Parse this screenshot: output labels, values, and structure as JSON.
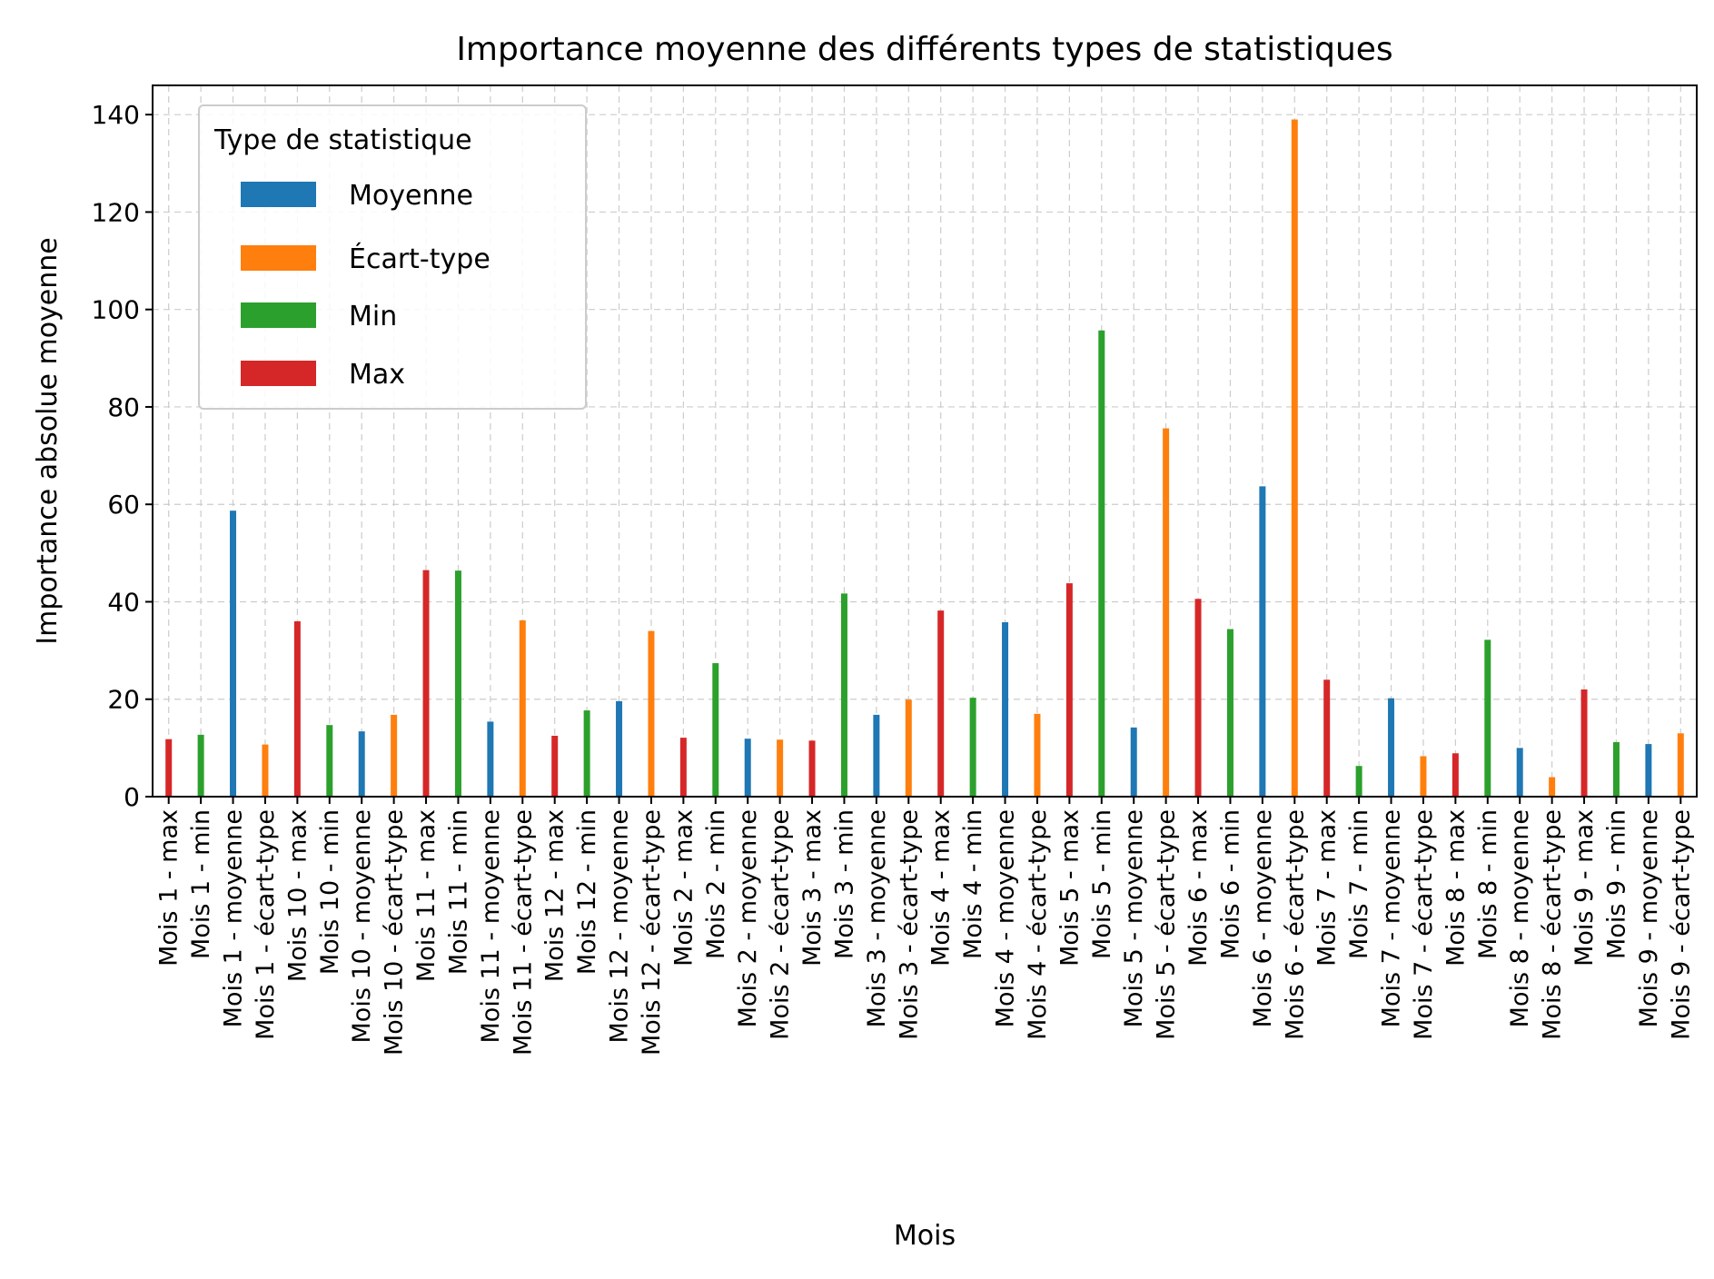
{
  "chart_data": {
    "type": "bar",
    "title": "Importance moyenne des différents types de statistiques",
    "xlabel": "Mois",
    "ylabel": "Importance absolue moyenne",
    "ylim": [
      0,
      146
    ],
    "yticks": [
      0,
      20,
      40,
      60,
      80,
      100,
      120,
      140
    ],
    "grid": true,
    "legend": {
      "title": "Type de statistique",
      "placement": "top-left"
    },
    "categories": [
      "Mois 1 - max",
      "Mois 1 - min",
      "Mois 1 - moyenne",
      "Mois 1 - écart-type",
      "Mois 10 - max",
      "Mois 10 - min",
      "Mois 10 - moyenne",
      "Mois 10 - écart-type",
      "Mois 11 - max",
      "Mois 11 - min",
      "Mois 11 - moyenne",
      "Mois 11 - écart-type",
      "Mois 12 - max",
      "Mois 12 - min",
      "Mois 12 - moyenne",
      "Mois 12 - écart-type",
      "Mois 2 - max",
      "Mois 2 - min",
      "Mois 2 - moyenne",
      "Mois 2 - écart-type",
      "Mois 3 - max",
      "Mois 3 - min",
      "Mois 3 - moyenne",
      "Mois 3 - écart-type",
      "Mois 4 - max",
      "Mois 4 - min",
      "Mois 4 - moyenne",
      "Mois 4 - écart-type",
      "Mois 5 - max",
      "Mois 5 - min",
      "Mois 5 - moyenne",
      "Mois 5 - écart-type",
      "Mois 6 - max",
      "Mois 6 - min",
      "Mois 6 - moyenne",
      "Mois 6 - écart-type",
      "Mois 7 - max",
      "Mois 7 - min",
      "Mois 7 - moyenne",
      "Mois 7 - écart-type",
      "Mois 8 - max",
      "Mois 8 - min",
      "Mois 8 - moyenne",
      "Mois 8 - écart-type",
      "Mois 9 - max",
      "Mois 9 - min",
      "Mois 9 - moyenne",
      "Mois 9 - écart-type"
    ],
    "series": [
      {
        "name": "Moyenne",
        "color": "#1f77b4",
        "values": [
          null,
          null,
          58.7,
          null,
          null,
          null,
          13.4,
          null,
          null,
          null,
          15.4,
          null,
          null,
          null,
          19.6,
          null,
          null,
          null,
          11.9,
          null,
          null,
          null,
          16.8,
          null,
          null,
          null,
          35.8,
          null,
          null,
          null,
          14.2,
          null,
          null,
          null,
          63.7,
          null,
          null,
          null,
          20.2,
          null,
          null,
          null,
          10.0,
          null,
          null,
          null,
          10.8,
          null
        ]
      },
      {
        "name": "Écart-type",
        "color": "#ff7f0e",
        "values": [
          null,
          null,
          null,
          10.7,
          null,
          null,
          null,
          16.8,
          null,
          null,
          null,
          36.2,
          null,
          null,
          null,
          34.0,
          null,
          null,
          null,
          11.7,
          null,
          null,
          null,
          19.9,
          null,
          null,
          null,
          17.0,
          null,
          null,
          null,
          75.6,
          null,
          null,
          null,
          139.0,
          null,
          null,
          null,
          8.3,
          null,
          null,
          null,
          4.0,
          null,
          null,
          null,
          13.0
        ]
      },
      {
        "name": "Min",
        "color": "#2ca02c",
        "values": [
          null,
          12.7,
          null,
          null,
          null,
          14.7,
          null,
          null,
          null,
          46.4,
          null,
          null,
          null,
          17.7,
          null,
          null,
          null,
          27.4,
          null,
          null,
          null,
          41.7,
          null,
          null,
          null,
          20.3,
          null,
          null,
          null,
          95.7,
          null,
          null,
          null,
          34.4,
          null,
          null,
          null,
          6.3,
          null,
          null,
          null,
          32.2,
          null,
          null,
          null,
          11.2,
          null,
          null
        ]
      },
      {
        "name": "Max",
        "color": "#d62728",
        "values": [
          11.8,
          null,
          null,
          null,
          36.0,
          null,
          null,
          null,
          46.5,
          null,
          null,
          null,
          12.5,
          null,
          null,
          null,
          12.1,
          null,
          null,
          null,
          11.5,
          null,
          null,
          null,
          38.2,
          null,
          null,
          null,
          43.8,
          null,
          null,
          null,
          40.6,
          null,
          null,
          null,
          24.0,
          null,
          null,
          null,
          8.9,
          null,
          null,
          null,
          22.0,
          null,
          null,
          null
        ]
      }
    ]
  }
}
